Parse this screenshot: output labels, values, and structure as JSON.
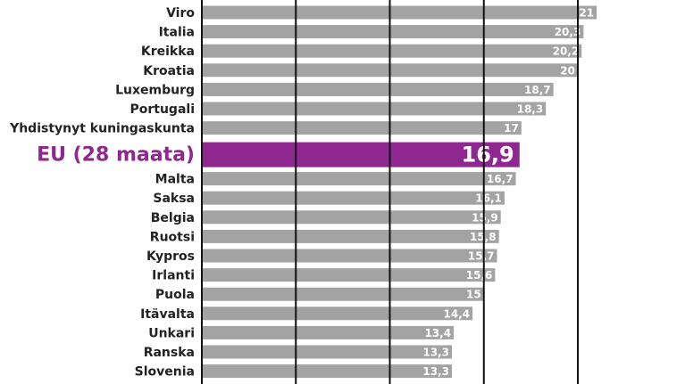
{
  "chart_data": {
    "type": "barh",
    "categories": [
      "Viro",
      "Italia",
      "Kreikka",
      "Kroatia",
      "Luxemburg",
      "Portugali",
      "Yhdistynyt kuningaskunta",
      "EU (28 maata)",
      "Malta",
      "Saksa",
      "Belgia",
      "Ruotsi",
      "Kypros",
      "Irlanti",
      "Puola",
      "Itävalta",
      "Unkari",
      "Ranska",
      "Slovenia"
    ],
    "values": [
      21,
      20.3,
      20.2,
      20,
      18.7,
      18.3,
      17,
      16.9,
      16.7,
      16.1,
      15.9,
      15.8,
      15.7,
      15.6,
      15,
      14.4,
      13.4,
      13.3,
      13.3
    ],
    "value_labels": [
      "21",
      "20,3",
      "20,2",
      "20",
      "18,7",
      "18,3",
      "17",
      "16,9",
      "16,7",
      "16,1",
      "15,9",
      "15,8",
      "15,7",
      "15,6",
      "15",
      "14,4",
      "13,4",
      "13,3",
      "13,3"
    ],
    "bar_colors": [
      "#a3a3a3",
      "#a3a3a3",
      "#a3a3a3",
      "#a3a3a3",
      "#a3a3a3",
      "#a3a3a3",
      "#a3a3a3",
      "#8e2790",
      "#a3a3a3",
      "#a3a3a3",
      "#a3a3a3",
      "#a3a3a3",
      "#a3a3a3",
      "#a3a3a3",
      "#a3a3a3",
      "#a3a3a3",
      "#a3a3a3",
      "#a3a3a3",
      "#a3a3a3"
    ],
    "highlight_color": "#8e2790",
    "xlim": [
      0,
      25.7
    ],
    "gridlines": [
      0,
      5,
      10,
      15,
      20
    ]
  }
}
